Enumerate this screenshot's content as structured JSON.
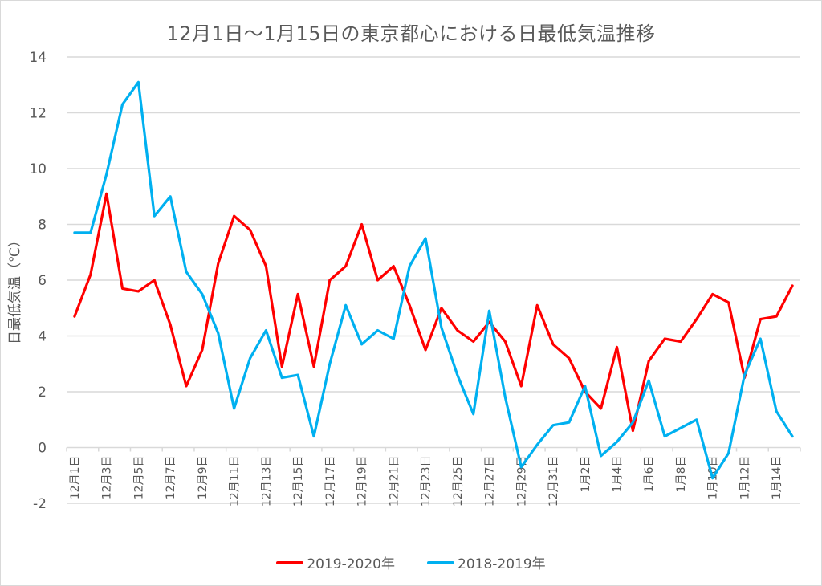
{
  "chart_data": {
    "type": "line",
    "title": "12月1日～1月15日の東京都心における日最低気温推移",
    "xlabel": "",
    "ylabel": "日最低気温（℃）",
    "ylim": [
      -2,
      14
    ],
    "yticks": [
      -2,
      0,
      2,
      4,
      6,
      8,
      10,
      12,
      14
    ],
    "grid": true,
    "legend_position": "bottom",
    "x": [
      "12月1日",
      "12月2日",
      "12月3日",
      "12月4日",
      "12月5日",
      "12月6日",
      "12月7日",
      "12月8日",
      "12月9日",
      "12月10日",
      "12月11日",
      "12月12日",
      "12月13日",
      "12月14日",
      "12月15日",
      "12月16日",
      "12月17日",
      "12月18日",
      "12月19日",
      "12月20日",
      "12月21日",
      "12月22日",
      "12月23日",
      "12月24日",
      "12月25日",
      "12月26日",
      "12月27日",
      "12月28日",
      "12月29日",
      "12月30日",
      "12月31日",
      "1月1日",
      "1月2日",
      "1月3日",
      "1月4日",
      "1月5日",
      "1月6日",
      "1月7日",
      "1月8日",
      "1月9日",
      "1月10日",
      "1月11日",
      "1月12日",
      "1月13日",
      "1月14日",
      "1月15日"
    ],
    "xtick_labels": [
      "12月1日",
      "12月3日",
      "12月5日",
      "12月7日",
      "12月9日",
      "12月11日",
      "12月13日",
      "12月15日",
      "12月17日",
      "12月19日",
      "12月21日",
      "12月23日",
      "12月25日",
      "12月27日",
      "12月29日",
      "12月31日",
      "1月2日",
      "1月4日",
      "1月6日",
      "1月8日",
      "1月10日",
      "1月12日",
      "1月14日"
    ],
    "series": [
      {
        "name": "2019-2020年",
        "color": "#ff0000",
        "values": [
          4.7,
          6.2,
          9.1,
          5.7,
          5.6,
          6.0,
          4.4,
          2.2,
          3.5,
          6.6,
          8.3,
          7.8,
          6.5,
          2.9,
          5.5,
          2.9,
          6.0,
          6.5,
          8.0,
          6.0,
          6.5,
          5.1,
          3.5,
          5.0,
          4.2,
          3.8,
          4.5,
          3.8,
          2.2,
          5.1,
          3.7,
          3.2,
          2.0,
          1.4,
          3.6,
          0.6,
          3.1,
          3.9,
          3.8,
          4.6,
          5.5,
          5.2,
          2.5,
          4.6,
          4.7,
          5.8
        ]
      },
      {
        "name": "2018-2019年",
        "color": "#00b0f0",
        "values": [
          7.7,
          7.7,
          9.8,
          12.3,
          13.1,
          8.3,
          9.0,
          6.3,
          5.5,
          4.1,
          1.4,
          3.2,
          4.2,
          2.5,
          2.6,
          0.4,
          3.0,
          5.1,
          3.7,
          4.2,
          3.9,
          6.5,
          7.5,
          4.3,
          2.6,
          1.2,
          4.9,
          1.8,
          -0.7,
          0.1,
          0.8,
          0.9,
          2.2,
          -0.3,
          0.2,
          0.9,
          2.4,
          0.4,
          0.7,
          1.0,
          -1.1,
          -0.2,
          2.6,
          3.9,
          1.3,
          0.4
        ]
      }
    ]
  }
}
